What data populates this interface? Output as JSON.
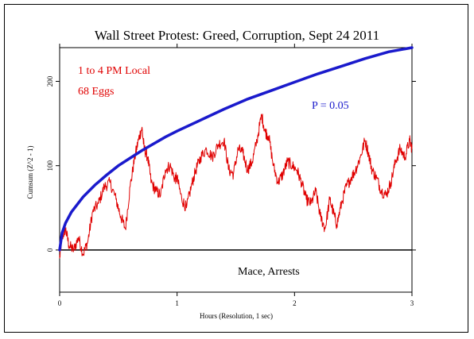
{
  "chart_data": {
    "type": "line",
    "title": "Wall Street Protest: Greed, Corruption, Sept 24 2011",
    "xlabel": "Hours (Resolution, 1 sec)",
    "ylabel": "Cumsum (Z^2 - 1)",
    "xlim": [
      0,
      3
    ],
    "ylim": [
      -50,
      240
    ],
    "x_ticks": [
      0,
      1,
      2,
      3
    ],
    "x_tick_labels": [
      "0",
      "1",
      "2",
      "3"
    ],
    "y_ticks": [
      0,
      100,
      200
    ],
    "y_tick_labels": [
      "0",
      "100",
      "200"
    ],
    "grid": false,
    "annotations": {
      "time_window": "1 to 4 PM Local",
      "eggs": "68 Eggs",
      "p_value": "P = 0.05",
      "event": "Mace, Arrests"
    },
    "series": [
      {
        "color": "#e00000",
        "x": [
          0,
          0.02,
          0.05,
          0.08,
          0.12,
          0.16,
          0.2,
          0.24,
          0.28,
          0.33,
          0.38,
          0.43,
          0.48,
          0.52,
          0.56,
          0.6,
          0.64,
          0.67,
          0.7,
          0.72,
          0.75,
          0.78,
          0.82,
          0.86,
          0.9,
          0.94,
          0.98,
          1.0,
          1.04,
          1.08,
          1.12,
          1.16,
          1.2,
          1.25,
          1.3,
          1.35,
          1.4,
          1.44,
          1.48,
          1.52,
          1.56,
          1.6,
          1.64,
          1.68,
          1.72,
          1.75,
          1.78,
          1.82,
          1.86,
          1.9,
          1.94,
          1.98,
          2.02,
          2.06,
          2.1,
          2.14,
          2.18,
          2.22,
          2.26,
          2.3,
          2.33,
          2.36,
          2.4,
          2.44,
          2.48,
          2.52,
          2.56,
          2.6,
          2.63,
          2.66,
          2.7,
          2.74,
          2.78,
          2.82,
          2.86,
          2.9,
          2.94,
          2.98,
          3.0
        ],
        "y": [
          -10,
          15,
          25,
          5,
          0,
          15,
          -5,
          10,
          45,
          55,
          75,
          80,
          60,
          40,
          25,
          75,
          110,
          130,
          145,
          120,
          110,
          80,
          70,
          65,
          95,
          100,
          85,
          85,
          60,
          50,
          75,
          95,
          110,
          120,
          110,
          125,
          130,
          95,
          90,
          120,
          115,
          95,
          105,
          130,
          160,
          140,
          135,
          100,
          80,
          90,
          105,
          100,
          95,
          80,
          60,
          55,
          70,
          40,
          25,
          60,
          45,
          30,
          55,
          75,
          85,
          95,
          110,
          130,
          115,
          95,
          85,
          70,
          65,
          80,
          105,
          120,
          110,
          130,
          120
        ]
      },
      {
        "name": "P = 0.05",
        "color": "#1a1acc",
        "x": [
          0,
          0.02,
          0.05,
          0.1,
          0.2,
          0.3,
          0.4,
          0.5,
          0.6,
          0.7,
          0.8,
          0.9,
          1.0,
          1.2,
          1.4,
          1.6,
          1.8,
          2.0,
          2.2,
          2.4,
          2.6,
          2.8,
          3.0
        ],
        "y": [
          0,
          20,
          32,
          45,
          63,
          77,
          89,
          100,
          109,
          118,
          126,
          134,
          141,
          154,
          167,
          179,
          189,
          199,
          209,
          218,
          227,
          235,
          243
        ]
      }
    ]
  }
}
